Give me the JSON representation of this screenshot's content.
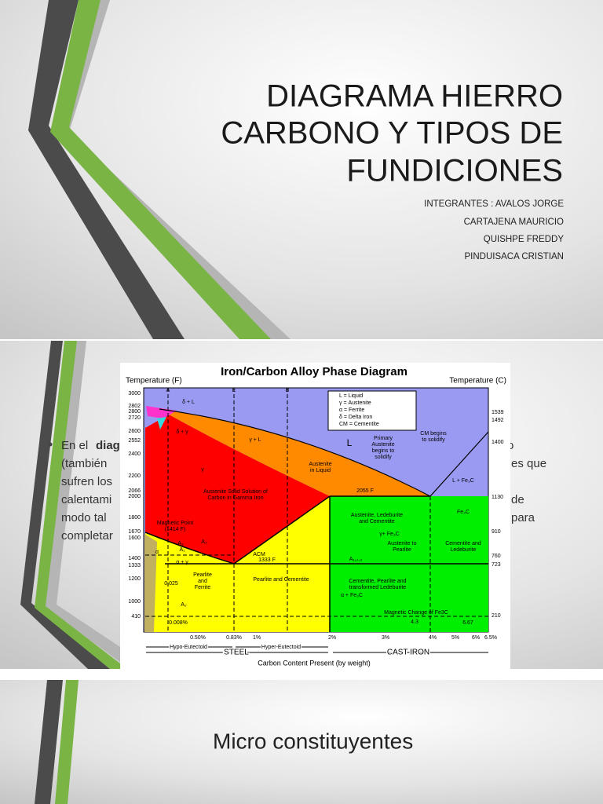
{
  "slides": [
    {
      "title_lines": [
        "DIAGRAMA HIERRO",
        "CARBONO Y TIPOS DE",
        "FUNDICIONES"
      ],
      "members": [
        "INTEGRANTES :  AVALOS JORGE",
        "CARTAJENA MAURICIO",
        "QUISHPE FREDDY",
        "PINDUISACA CRISTIAN"
      ]
    },
    {
      "body_fragments": [
        "En el",
        "diag",
        "(también",
        "sufren los",
        "calentami",
        "modo tal",
        "completar",
        "o",
        "es que",
        "de",
        "para"
      ],
      "figure": {
        "title": "Iron/Carbon Alloy Phase Diagram",
        "left_axis_label": "Temperature (F)",
        "right_axis_label": "Temperature (C)",
        "left_ticks": [
          3000,
          2802,
          2800,
          2720,
          2600,
          2552,
          2400,
          2200,
          2066,
          2000,
          1800,
          1670,
          1600,
          1400,
          1333,
          1200,
          1000,
          410
        ],
        "right_ticks": [
          1539,
          1492,
          1400,
          1130,
          910,
          760,
          723,
          210
        ],
        "bottom_ticks": [
          "0.50%",
          "0.83%",
          "1%",
          "2%",
          "3%",
          "4%",
          "5%",
          "6%",
          "6.5%"
        ],
        "top_letters": [
          "A",
          "E",
          "B"
        ],
        "legend": [
          "L = Liquid",
          "γ = Austenite",
          "α = Ferrite",
          "δ = Delta Iron",
          "CM = Cementite"
        ],
        "regions": [
          [
            "δ + L"
          ],
          [
            "δ + γ"
          ],
          [
            "γ + L"
          ],
          [
            "L"
          ],
          [
            "γ"
          ],
          [
            "Austenite Solid Solution of",
            "Carbon in Gamma Iron"
          ],
          [
            "Austenite",
            "in Liquid"
          ],
          [
            "Primary",
            "Austenite",
            "begins to",
            "solidify"
          ],
          [
            "CM begins",
            "to solidify"
          ],
          [
            "L + Fe₃C"
          ],
          [
            "2055 F"
          ],
          [
            "Magnetic Point",
            "(1414 F)"
          ],
          [
            "A₃"
          ],
          [
            "A₂"
          ],
          [
            "A₁"
          ],
          [
            "ACM"
          ],
          [
            "α + γ"
          ],
          [
            "1333 F"
          ],
          [
            "0.025"
          ],
          [
            "Pearlite",
            "and",
            "Ferrite"
          ],
          [
            "Pearlite and Cementite"
          ],
          [
            "Austenite, Ledeburite",
            "and Cementite"
          ],
          [
            "γ+ Fe₃C"
          ],
          [
            "Fe₃C"
          ],
          [
            "Austenite to",
            "Pearlite"
          ],
          [
            "Cementite and",
            "Ledeburite"
          ],
          [
            "A₁,₂,₃"
          ],
          [
            "Cementite, Pearlite and",
            "transformed Ledeburite"
          ],
          [
            "α + Fe₃C"
          ],
          [
            "Magnetic Change of Fe3C"
          ],
          [
            "0.008%"
          ],
          [
            "4.3"
          ],
          [
            "6.67"
          ],
          [
            "α"
          ],
          [
            "A₂"
          ]
        ],
        "ranges": [
          "Hypo-Eutectoid",
          "Hyper-Eutectoid",
          "STEEL",
          "CAST IRON"
        ],
        "x_axis_label": "Carbon Content Present (by weight)"
      }
    },
    {
      "title": "Micro constituyentes"
    }
  ]
}
